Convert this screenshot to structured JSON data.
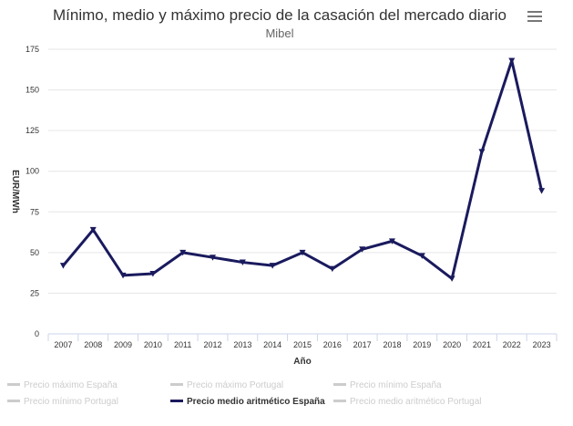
{
  "header": {
    "title": "Mínimo, medio y máximo precio de la casación del mercado diario",
    "subtitle": "Mibel",
    "menu_icon": "hamburger-menu-icon"
  },
  "chart_data": {
    "type": "line",
    "title": "Mínimo, medio y máximo precio de la casación del mercado diario",
    "subtitle": "Mibel",
    "xlabel": "Año",
    "ylabel": "EUR/MWh",
    "categories": [
      "2007",
      "2008",
      "2009",
      "2010",
      "2011",
      "2012",
      "2013",
      "2014",
      "2015",
      "2016",
      "2017",
      "2018",
      "2019",
      "2020",
      "2021",
      "2022",
      "2023"
    ],
    "ylim": [
      0,
      175
    ],
    "yticks": [
      0,
      25,
      50,
      75,
      100,
      125,
      150,
      175
    ],
    "grid": true,
    "series": [
      {
        "name": "Precio medio aritmético España",
        "color": "#1a1a5e",
        "visible": true,
        "values": [
          42,
          64,
          36,
          37,
          50,
          47,
          44,
          42,
          50,
          40,
          52,
          57,
          48,
          34,
          112,
          168,
          88
        ]
      }
    ],
    "legend": {
      "placement": "bottom",
      "items": [
        {
          "label": "Precio máximo España",
          "active": false
        },
        {
          "label": "Precio máximo Portugal",
          "active": false
        },
        {
          "label": "Precio mínimo España",
          "active": false
        },
        {
          "label": "Precio mínimo Portugal",
          "active": false
        },
        {
          "label": "Precio medio aritmético España",
          "active": true
        },
        {
          "label": "Precio medio aritmético Portugal",
          "active": false
        }
      ]
    }
  }
}
